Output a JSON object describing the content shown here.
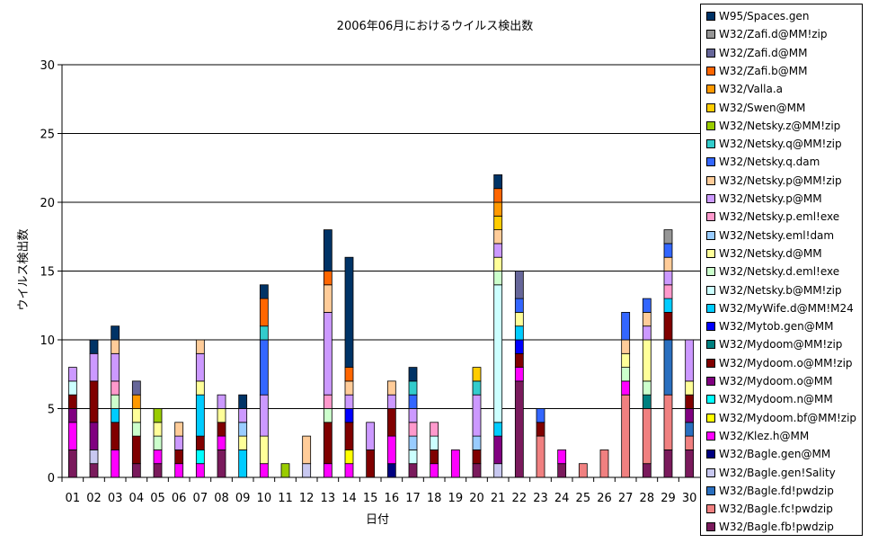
{
  "chart_data": {
    "type": "bar",
    "stacked": true,
    "title": "2006年06月におけるウイルス検出数",
    "xlabel": "日付",
    "ylabel": "ウイルス検出数",
    "ylim": [
      0,
      30
    ],
    "yticks": [
      0,
      5,
      10,
      15,
      20,
      25,
      30
    ],
    "grid": true,
    "legend": "right",
    "categories": [
      "01",
      "02",
      "03",
      "04",
      "05",
      "06",
      "07",
      "08",
      "09",
      "10",
      "11",
      "12",
      "13",
      "14",
      "15",
      "16",
      "17",
      "18",
      "19",
      "20",
      "21",
      "22",
      "23",
      "24",
      "25",
      "26",
      "27",
      "28",
      "29",
      "30"
    ],
    "series": [
      {
        "name": "W32/Bagle.fb!pwdzip",
        "color": "#7a1a5c",
        "values": [
          2,
          1,
          0,
          1,
          1,
          0,
          0,
          2,
          0,
          0,
          0,
          0,
          0,
          0,
          0,
          0,
          1,
          0,
          0,
          1,
          0,
          7,
          0,
          1,
          0,
          0,
          0,
          1,
          2,
          2
        ]
      },
      {
        "name": "W32/Bagle.fc!pwdzip",
        "color": "#f08080",
        "values": [
          0,
          0,
          0,
          0,
          0,
          0,
          0,
          0,
          0,
          0,
          0,
          0,
          0,
          0,
          0,
          0,
          0,
          0,
          0,
          0,
          0,
          0,
          3,
          0,
          1,
          2,
          6,
          4,
          4,
          1
        ]
      },
      {
        "name": "W32/Bagle.fd!pwdzip",
        "color": "#2a6fbf",
        "values": [
          0,
          0,
          0,
          0,
          0,
          0,
          0,
          0,
          0,
          0,
          0,
          0,
          0,
          0,
          0,
          0,
          0,
          0,
          0,
          0,
          0,
          0,
          0,
          0,
          0,
          0,
          0,
          0,
          4,
          1
        ]
      },
      {
        "name": "W32/Bagle.gen!Sality",
        "color": "#c8c8f0",
        "values": [
          0,
          1,
          0,
          0,
          0,
          0,
          0,
          0,
          0,
          0,
          0,
          1,
          0,
          0,
          0,
          0,
          0,
          0,
          0,
          0,
          1,
          0,
          0,
          0,
          0,
          0,
          0,
          0,
          0,
          0
        ]
      },
      {
        "name": "W32/Bagle.gen@MM",
        "color": "#000080",
        "values": [
          0,
          0,
          0,
          0,
          0,
          0,
          0,
          0,
          0,
          0,
          0,
          0,
          0,
          0,
          0,
          1,
          0,
          0,
          0,
          0,
          0,
          0,
          0,
          0,
          0,
          0,
          0,
          0,
          0,
          0
        ]
      },
      {
        "name": "W32/Klez.h@MM",
        "color": "#ff00ff",
        "values": [
          2,
          0,
          2,
          0,
          1,
          1,
          1,
          1,
          0,
          1,
          0,
          0,
          1,
          1,
          0,
          2,
          0,
          1,
          2,
          0,
          0,
          1,
          0,
          1,
          0,
          0,
          1,
          0,
          0,
          0
        ]
      },
      {
        "name": "W32/Mydoom.bf@MM!zip",
        "color": "#ffff00",
        "values": [
          0,
          0,
          0,
          0,
          0,
          0,
          0,
          0,
          0,
          0,
          0,
          0,
          0,
          1,
          0,
          0,
          0,
          0,
          0,
          0,
          0,
          0,
          0,
          0,
          0,
          0,
          0,
          0,
          0,
          0
        ]
      },
      {
        "name": "W32/Mydoom.n@MM",
        "color": "#00ffff",
        "values": [
          0,
          0,
          0,
          0,
          0,
          0,
          1,
          0,
          0,
          0,
          0,
          0,
          0,
          0,
          0,
          0,
          0,
          0,
          0,
          0,
          0,
          0,
          0,
          0,
          0,
          0,
          0,
          0,
          0,
          0
        ]
      },
      {
        "name": "W32/Mydoom.o@MM",
        "color": "#800080",
        "values": [
          1,
          2,
          0,
          0,
          0,
          0,
          0,
          0,
          0,
          0,
          0,
          0,
          0,
          0,
          0,
          0,
          0,
          0,
          0,
          0,
          2,
          0,
          0,
          0,
          0,
          0,
          0,
          0,
          0,
          1
        ]
      },
      {
        "name": "W32/Mydoom.o@MM!zip",
        "color": "#800000",
        "values": [
          1,
          3,
          2,
          2,
          0,
          1,
          1,
          1,
          0,
          0,
          0,
          0,
          3,
          2,
          2,
          2,
          0,
          1,
          0,
          1,
          0,
          1,
          1,
          0,
          0,
          0,
          0,
          0,
          2,
          1
        ]
      },
      {
        "name": "W32/Mydoom@MM!zip",
        "color": "#008080",
        "values": [
          0,
          0,
          0,
          0,
          0,
          0,
          0,
          0,
          0,
          0,
          0,
          0,
          0,
          0,
          0,
          0,
          0,
          0,
          0,
          0,
          0,
          0,
          0,
          0,
          0,
          0,
          0,
          1,
          0,
          0
        ]
      },
      {
        "name": "W32/Mytob.gen@MM",
        "color": "#0000ff",
        "values": [
          0,
          0,
          0,
          0,
          0,
          0,
          0,
          0,
          0,
          0,
          0,
          0,
          0,
          1,
          0,
          0,
          0,
          0,
          0,
          0,
          0,
          1,
          0,
          0,
          0,
          0,
          0,
          0,
          0,
          0
        ]
      },
      {
        "name": "W32/MyWife.d@MM!M24",
        "color": "#00ccff",
        "values": [
          0,
          0,
          1,
          0,
          0,
          0,
          3,
          0,
          2,
          0,
          0,
          0,
          0,
          0,
          0,
          0,
          0,
          0,
          0,
          0,
          1,
          1,
          0,
          0,
          0,
          0,
          0,
          0,
          1,
          0
        ]
      },
      {
        "name": "W32/Netsky.b@MM!zip",
        "color": "#ccffff",
        "values": [
          1,
          0,
          0,
          0,
          0,
          0,
          0,
          0,
          0,
          0,
          0,
          0,
          0,
          0,
          0,
          0,
          1,
          1,
          0,
          0,
          10,
          0,
          0,
          0,
          0,
          0,
          0,
          0,
          0,
          0
        ]
      },
      {
        "name": "W32/Netsky.d.eml!exe",
        "color": "#ccffcc",
        "values": [
          0,
          0,
          1,
          1,
          1,
          0,
          0,
          0,
          0,
          0,
          0,
          0,
          1,
          0,
          0,
          0,
          0,
          0,
          0,
          0,
          1,
          0,
          0,
          0,
          0,
          0,
          1,
          1,
          0,
          0
        ]
      },
      {
        "name": "W32/Netsky.d@MM",
        "color": "#ffff99",
        "values": [
          0,
          0,
          0,
          1,
          1,
          0,
          1,
          1,
          1,
          2,
          0,
          0,
          0,
          0,
          0,
          0,
          0,
          0,
          0,
          0,
          1,
          1,
          0,
          0,
          0,
          0,
          1,
          3,
          0,
          1
        ]
      },
      {
        "name": "W32/Netsky.eml!dam",
        "color": "#99ccff",
        "values": [
          0,
          0,
          0,
          0,
          0,
          0,
          0,
          0,
          1,
          0,
          0,
          0,
          0,
          0,
          0,
          0,
          1,
          0,
          0,
          1,
          0,
          0,
          0,
          0,
          0,
          0,
          0,
          0,
          0,
          0
        ]
      },
      {
        "name": "W32/Netsky.p.eml!exe",
        "color": "#ff99cc",
        "values": [
          0,
          0,
          1,
          0,
          0,
          0,
          0,
          0,
          0,
          0,
          0,
          0,
          1,
          0,
          0,
          0,
          1,
          1,
          0,
          0,
          0,
          0,
          0,
          0,
          0,
          0,
          0,
          0,
          1,
          0
        ]
      },
      {
        "name": "W32/Netsky.p@MM",
        "color": "#cc99ff",
        "values": [
          1,
          2,
          2,
          0,
          0,
          1,
          2,
          1,
          1,
          3,
          0,
          0,
          6,
          1,
          2,
          1,
          1,
          0,
          0,
          3,
          1,
          0,
          0,
          0,
          0,
          0,
          0,
          1,
          1,
          3
        ]
      },
      {
        "name": "W32/Netsky.p@MM!zip",
        "color": "#ffcc99",
        "values": [
          0,
          0,
          1,
          0,
          0,
          1,
          1,
          0,
          0,
          0,
          0,
          2,
          2,
          1,
          0,
          1,
          0,
          0,
          0,
          0,
          1,
          0,
          0,
          0,
          0,
          0,
          1,
          1,
          1,
          0
        ]
      },
      {
        "name": "W32/Netsky.q.dam",
        "color": "#3366ff",
        "values": [
          0,
          0,
          0,
          0,
          0,
          0,
          0,
          0,
          0,
          4,
          0,
          0,
          0,
          0,
          0,
          0,
          1,
          0,
          0,
          0,
          0,
          1,
          1,
          0,
          0,
          0,
          2,
          1,
          1,
          0
        ]
      },
      {
        "name": "W32/Netsky.q@MM!zip",
        "color": "#33cccc",
        "values": [
          0,
          0,
          0,
          0,
          0,
          0,
          0,
          0,
          0,
          1,
          0,
          0,
          0,
          0,
          0,
          0,
          1,
          0,
          0,
          1,
          0,
          0,
          0,
          0,
          0,
          0,
          0,
          0,
          0,
          0
        ]
      },
      {
        "name": "W32/Netsky.z@MM!zip",
        "color": "#99cc00",
        "values": [
          0,
          0,
          0,
          0,
          1,
          0,
          0,
          0,
          0,
          0,
          1,
          0,
          0,
          0,
          0,
          0,
          0,
          0,
          0,
          0,
          0,
          0,
          0,
          0,
          0,
          0,
          0,
          0,
          0,
          0
        ]
      },
      {
        "name": "W32/Swen@MM",
        "color": "#ffcc00",
        "values": [
          0,
          0,
          0,
          0,
          0,
          0,
          0,
          0,
          0,
          0,
          0,
          0,
          0,
          0,
          0,
          0,
          0,
          0,
          0,
          1,
          1,
          0,
          0,
          0,
          0,
          0,
          0,
          0,
          0,
          0
        ]
      },
      {
        "name": "W32/Valla.a",
        "color": "#ff9900",
        "values": [
          0,
          0,
          0,
          1,
          0,
          0,
          0,
          0,
          0,
          0,
          0,
          0,
          0,
          0,
          0,
          0,
          0,
          0,
          0,
          0,
          1,
          0,
          0,
          0,
          0,
          0,
          0,
          0,
          0,
          0
        ]
      },
      {
        "name": "W32/Zafi.b@MM",
        "color": "#ff6600",
        "values": [
          0,
          0,
          0,
          0,
          0,
          0,
          0,
          0,
          0,
          2,
          0,
          0,
          1,
          1,
          0,
          0,
          0,
          0,
          0,
          0,
          1,
          0,
          0,
          0,
          0,
          0,
          0,
          0,
          0,
          0
        ]
      },
      {
        "name": "W32/Zafi.d@MM",
        "color": "#666699",
        "values": [
          0,
          0,
          0,
          1,
          0,
          0,
          0,
          0,
          0,
          0,
          0,
          0,
          0,
          0,
          0,
          0,
          0,
          0,
          0,
          0,
          0,
          2,
          0,
          0,
          0,
          0,
          0,
          0,
          0,
          0
        ]
      },
      {
        "name": "W32/Zafi.d@MM!zip",
        "color": "#969696",
        "values": [
          0,
          0,
          0,
          0,
          0,
          0,
          0,
          0,
          0,
          0,
          0,
          0,
          0,
          0,
          0,
          0,
          0,
          0,
          0,
          0,
          0,
          0,
          0,
          0,
          0,
          0,
          0,
          0,
          1,
          0
        ]
      },
      {
        "name": "W95/Spaces.gen",
        "color": "#003366",
        "values": [
          0,
          1,
          1,
          0,
          0,
          0,
          0,
          0,
          1,
          1,
          0,
          0,
          3,
          8,
          0,
          0,
          1,
          0,
          0,
          0,
          1,
          0,
          0,
          0,
          0,
          0,
          0,
          0,
          0,
          0
        ]
      }
    ]
  }
}
